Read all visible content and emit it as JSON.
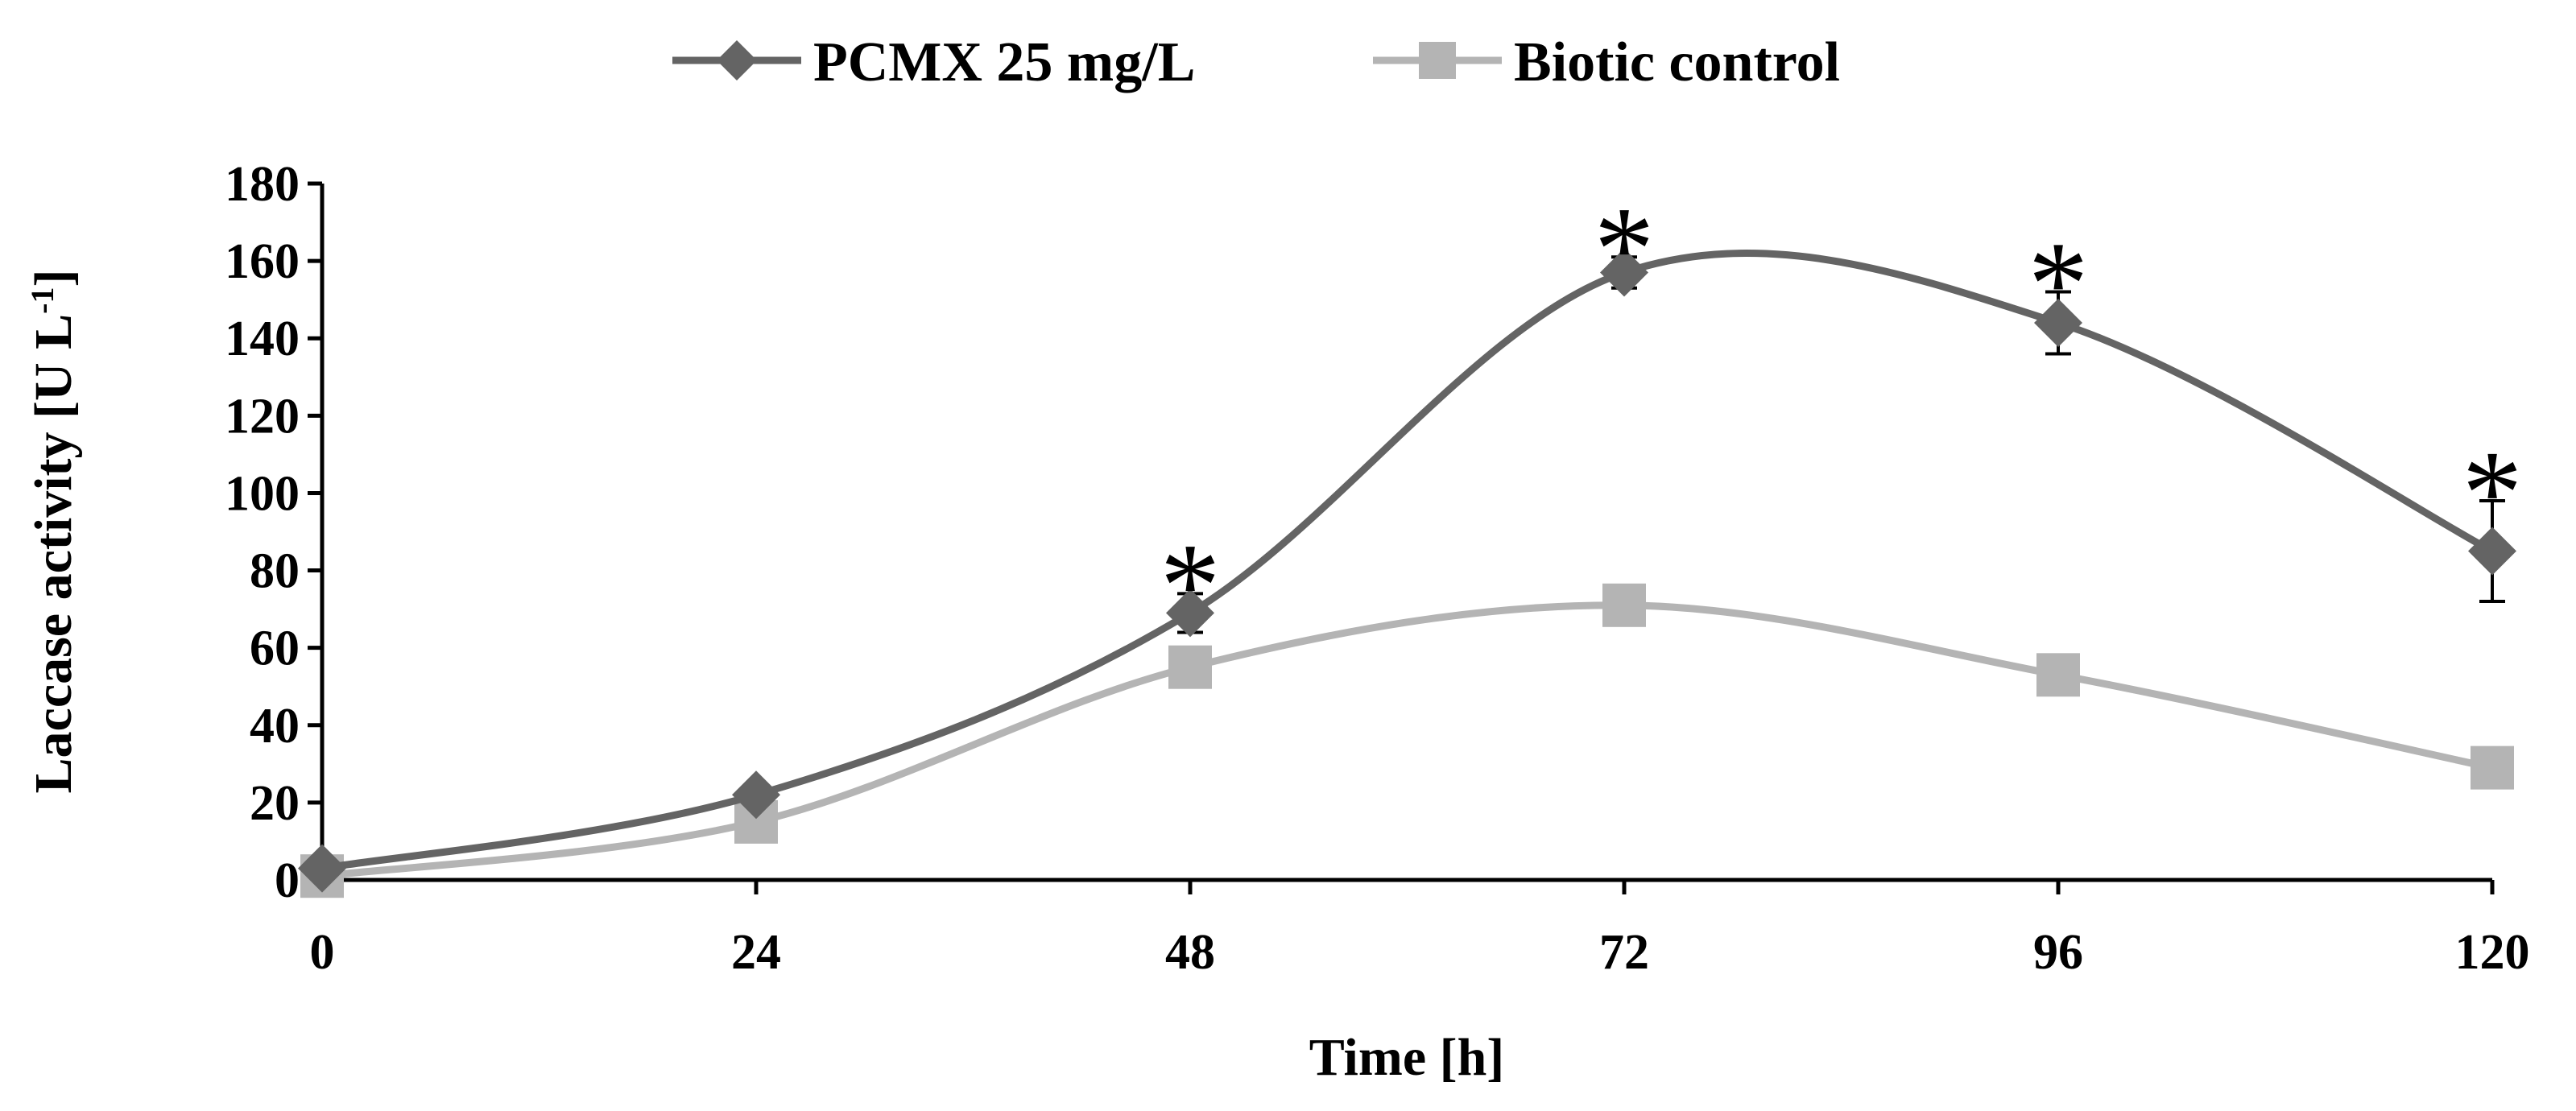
{
  "chart_data": {
    "type": "line",
    "x": [
      0,
      24,
      48,
      72,
      96,
      120
    ],
    "xlabel": "Time [h]",
    "ylabel": "Laccase activity [U L-1]",
    "ylabel_main": "Laccase activity [U L",
    "ylabel_sup": "-1",
    "ylabel_end": "]",
    "xlim": [
      0,
      120
    ],
    "ylim": [
      0,
      180
    ],
    "x_ticks": [
      "0",
      "24",
      "48",
      "72",
      "96",
      "120"
    ],
    "y_ticks": [
      "0",
      "20",
      "40",
      "60",
      "80",
      "100",
      "120",
      "140",
      "160",
      "180"
    ],
    "grid": false,
    "smoothed": true,
    "legend_position": "top-center",
    "series": [
      {
        "name": "PCMX 25 mg/L",
        "marker": "diamond",
        "color": "#646464",
        "values": [
          3,
          22,
          69,
          157,
          144,
          85
        ],
        "error": [
          0,
          0,
          5,
          4,
          8,
          13
        ],
        "significant": [
          false,
          false,
          true,
          true,
          true,
          true
        ]
      },
      {
        "name": "Biotic control",
        "marker": "square",
        "color": "#b4b4b4",
        "values": [
          1,
          15,
          55,
          71,
          53,
          29
        ]
      }
    ],
    "significance_symbol": "*"
  }
}
